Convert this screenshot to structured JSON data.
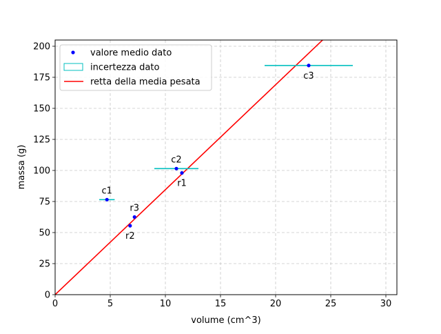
{
  "chart_data": {
    "type": "scatter",
    "title": "",
    "xlabel": "volume (cm^3)",
    "ylabel": "massa (g)",
    "xlim": [
      0,
      31
    ],
    "ylim": [
      0,
      205
    ],
    "xticks": [
      0,
      5,
      10,
      15,
      20,
      25,
      30
    ],
    "yticks": [
      0,
      25,
      50,
      75,
      100,
      125,
      150,
      175,
      200
    ],
    "grid": true,
    "legend_position": "top-left",
    "legend": [
      {
        "label": "valore medio dato",
        "kind": "point",
        "color": "#0000ff"
      },
      {
        "label": "incertezza dato",
        "kind": "patch",
        "color": "#00bfbf"
      },
      {
        "label": "retta della media pesata",
        "kind": "line",
        "color": "#ff0000"
      }
    ],
    "points": [
      {
        "label": "c1",
        "x": 4.7,
        "y": 76.5,
        "xerr": 0.7,
        "label_pos": "above"
      },
      {
        "label": "c2",
        "x": 11.0,
        "y": 101.5,
        "xerr": 2.0,
        "label_pos": "above"
      },
      {
        "label": "c3",
        "x": 23.0,
        "y": 184.5,
        "xerr": 4.0,
        "label_pos": "below"
      },
      {
        "label": "r1",
        "x": 11.5,
        "y": 98.0,
        "xerr": 0,
        "label_pos": "below"
      },
      {
        "label": "r2",
        "x": 6.8,
        "y": 55.5,
        "xerr": 0,
        "label_pos": "below"
      },
      {
        "label": "r3",
        "x": 7.2,
        "y": 62.5,
        "xerr": 0,
        "label_pos": "above"
      }
    ],
    "fit_line": {
      "slope": 8.45,
      "intercept": 0,
      "color": "#ff0000"
    }
  }
}
